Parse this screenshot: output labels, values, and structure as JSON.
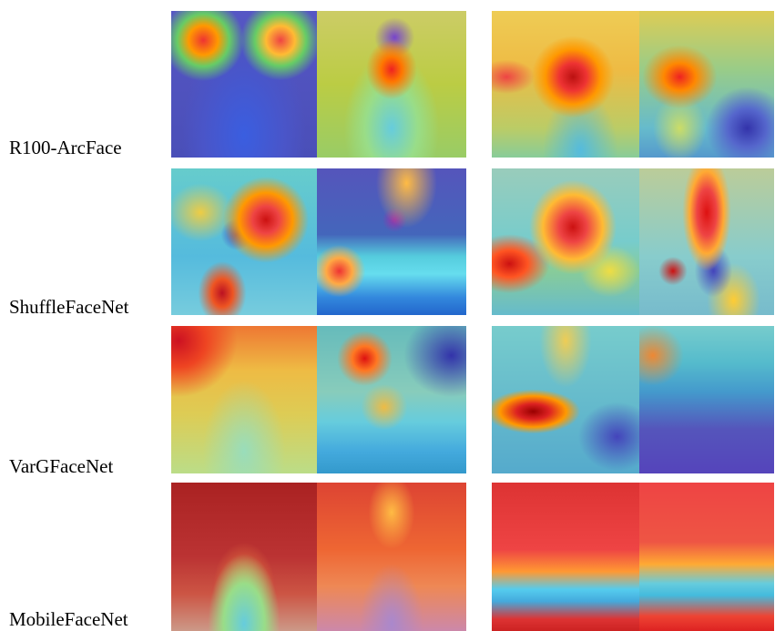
{
  "rows": [
    {
      "label": "R100-ArcFace"
    },
    {
      "label": "ShuffleFaceNet"
    },
    {
      "label": "VarGFaceNet"
    },
    {
      "label": "MobileFaceNet"
    }
  ]
}
